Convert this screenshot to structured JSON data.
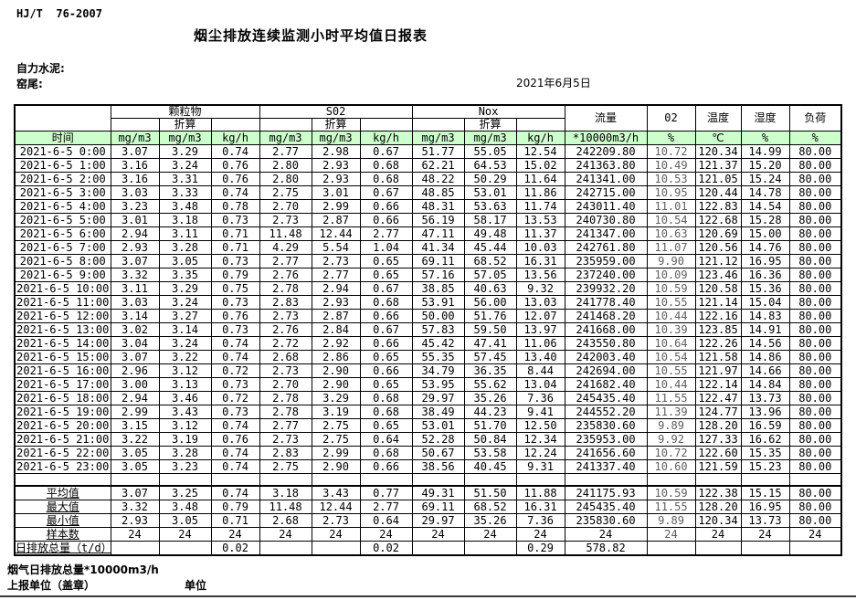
{
  "page": {
    "standard": "HJ/T  76-2007",
    "title": "烟尘排放连续监测小时平均值日报表",
    "company": "自力水泥:",
    "station": "窑尾:",
    "date": "2021年6月5日"
  },
  "colors": {
    "header_green": "#ccffcc",
    "o2_text": "#606060"
  },
  "table": {
    "header": {
      "time_label": "时间",
      "groups": [
        {
          "label": "颗粒物"
        },
        {
          "label": "S02"
        },
        {
          "label": "Nox"
        }
      ],
      "converted_label": "折算",
      "flow_label": "流量",
      "o2_label": "02",
      "temp_label": "温度",
      "humidity_label": "湿度",
      "load_label": "负荷",
      "units": [
        "mg/m3",
        "mg/m3",
        "kg/h",
        "mg/m3",
        "mg/m3",
        "kg/h",
        "mg/m3",
        "mg/m3",
        "kg/h",
        "*10000m3/h",
        "%",
        "℃",
        "%",
        "%"
      ]
    },
    "rows": [
      {
        "time": "2021-6-5 0:00",
        "values": [
          "3.07",
          "3.29",
          "0.74",
          "2.77",
          "2.98",
          "0.67",
          "51.77",
          "55.05",
          "12.54",
          "242209.80",
          "10.72",
          "120.34",
          "14.99",
          "80.00"
        ]
      },
      {
        "time": "2021-6-5 1:00",
        "values": [
          "3.16",
          "3.24",
          "0.76",
          "2.80",
          "2.93",
          "0.68",
          "62.21",
          "64.53",
          "15.02",
          "241363.80",
          "10.49",
          "121.37",
          "15.20",
          "80.00"
        ]
      },
      {
        "time": "2021-6-5 2:00",
        "values": [
          "3.16",
          "3.31",
          "0.76",
          "2.80",
          "2.93",
          "0.68",
          "48.22",
          "50.29",
          "11.64",
          "241341.00",
          "10.53",
          "121.05",
          "15.24",
          "80.00"
        ]
      },
      {
        "time": "2021-6-5 3:00",
        "values": [
          "3.03",
          "3.33",
          "0.74",
          "2.75",
          "3.01",
          "0.67",
          "48.85",
          "53.01",
          "11.86",
          "242715.00",
          "10.95",
          "120.44",
          "14.78",
          "80.00"
        ]
      },
      {
        "time": "2021-6-5 4:00",
        "values": [
          "3.23",
          "3.48",
          "0.78",
          "2.70",
          "2.99",
          "0.66",
          "48.31",
          "53.63",
          "11.74",
          "243011.40",
          "11.01",
          "122.83",
          "14.54",
          "80.00"
        ]
      },
      {
        "time": "2021-6-5 5:00",
        "values": [
          "3.01",
          "3.18",
          "0.73",
          "2.73",
          "2.87",
          "0.66",
          "56.19",
          "58.17",
          "13.53",
          "240730.80",
          "10.54",
          "122.68",
          "15.28",
          "80.00"
        ]
      },
      {
        "time": "2021-6-5 6:00",
        "values": [
          "2.94",
          "3.11",
          "0.71",
          "11.48",
          "12.44",
          "2.77",
          "47.11",
          "49.48",
          "11.37",
          "241347.00",
          "10.63",
          "120.69",
          "15.00",
          "80.00"
        ]
      },
      {
        "time": "2021-6-5 7:00",
        "values": [
          "2.93",
          "3.28",
          "0.71",
          "4.29",
          "5.54",
          "1.04",
          "41.34",
          "45.44",
          "10.03",
          "242761.80",
          "11.07",
          "120.56",
          "14.76",
          "80.00"
        ]
      },
      {
        "time": "2021-6-5 8:00",
        "values": [
          "3.07",
          "3.05",
          "0.73",
          "2.77",
          "2.73",
          "0.65",
          "69.11",
          "68.52",
          "16.31",
          "235959.00",
          "9.90",
          "121.12",
          "16.95",
          "80.00"
        ]
      },
      {
        "time": "2021-6-5 9:00",
        "values": [
          "3.32",
          "3.35",
          "0.79",
          "2.76",
          "2.77",
          "0.65",
          "57.16",
          "57.05",
          "13.56",
          "237240.00",
          "10.09",
          "123.46",
          "16.36",
          "80.00"
        ]
      },
      {
        "time": "2021-6-5 10:00",
        "values": [
          "3.11",
          "3.29",
          "0.75",
          "2.78",
          "2.94",
          "0.67",
          "38.85",
          "40.63",
          "9.32",
          "239932.20",
          "10.59",
          "120.58",
          "15.36",
          "80.00"
        ]
      },
      {
        "time": "2021-6-5 11:00",
        "values": [
          "3.03",
          "3.24",
          "0.73",
          "2.83",
          "2.93",
          "0.68",
          "53.91",
          "56.00",
          "13.03",
          "241778.40",
          "10.55",
          "121.14",
          "15.04",
          "80.00"
        ]
      },
      {
        "time": "2021-6-5 12:00",
        "values": [
          "3.14",
          "3.27",
          "0.76",
          "2.73",
          "2.87",
          "0.66",
          "50.00",
          "51.76",
          "12.07",
          "241468.20",
          "10.44",
          "122.16",
          "14.83",
          "80.00"
        ]
      },
      {
        "time": "2021-6-5 13:00",
        "values": [
          "3.02",
          "3.14",
          "0.73",
          "2.76",
          "2.84",
          "0.67",
          "57.83",
          "59.50",
          "13.97",
          "241668.00",
          "10.39",
          "123.85",
          "14.91",
          "80.00"
        ]
      },
      {
        "time": "2021-6-5 14:00",
        "values": [
          "3.04",
          "3.24",
          "0.74",
          "2.72",
          "2.92",
          "0.66",
          "45.42",
          "47.41",
          "11.06",
          "243550.80",
          "10.64",
          "122.26",
          "14.56",
          "80.00"
        ]
      },
      {
        "time": "2021-6-5 15:00",
        "values": [
          "3.07",
          "3.22",
          "0.74",
          "2.68",
          "2.86",
          "0.65",
          "55.35",
          "57.45",
          "13.40",
          "242003.40",
          "10.54",
          "121.58",
          "14.86",
          "80.00"
        ]
      },
      {
        "time": "2021-6-5 16:00",
        "values": [
          "2.96",
          "3.12",
          "0.72",
          "2.73",
          "2.90",
          "0.66",
          "34.79",
          "36.35",
          "8.44",
          "242694.00",
          "10.55",
          "121.97",
          "14.66",
          "80.00"
        ]
      },
      {
        "time": "2021-6-5 17:00",
        "values": [
          "3.00",
          "3.13",
          "0.73",
          "2.70",
          "2.90",
          "0.65",
          "53.95",
          "55.62",
          "13.04",
          "241682.40",
          "10.44",
          "122.14",
          "14.84",
          "80.00"
        ]
      },
      {
        "time": "2021-6-5 18:00",
        "values": [
          "2.94",
          "3.46",
          "0.72",
          "2.78",
          "3.29",
          "0.68",
          "29.97",
          "35.26",
          "7.36",
          "245435.40",
          "11.55",
          "122.47",
          "13.73",
          "80.00"
        ]
      },
      {
        "time": "2021-6-5 19:00",
        "values": [
          "2.99",
          "3.43",
          "0.73",
          "2.78",
          "3.19",
          "0.68",
          "38.49",
          "44.23",
          "9.41",
          "244552.20",
          "11.39",
          "124.77",
          "13.96",
          "80.00"
        ]
      },
      {
        "time": "2021-6-5 20:00",
        "values": [
          "3.15",
          "3.12",
          "0.74",
          "2.77",
          "2.75",
          "0.65",
          "53.01",
          "51.70",
          "12.50",
          "235830.60",
          "9.89",
          "128.20",
          "16.59",
          "80.00"
        ]
      },
      {
        "time": "2021-6-5 21:00",
        "values": [
          "3.22",
          "3.19",
          "0.76",
          "2.73",
          "2.75",
          "0.64",
          "52.28",
          "50.84",
          "12.34",
          "235953.00",
          "9.92",
          "127.33",
          "16.62",
          "80.00"
        ]
      },
      {
        "time": "2021-6-5 22:00",
        "values": [
          "3.05",
          "3.28",
          "0.74",
          "2.83",
          "2.99",
          "0.68",
          "50.67",
          "53.58",
          "12.24",
          "241656.60",
          "10.72",
          "122.60",
          "15.35",
          "80.00"
        ]
      },
      {
        "time": "2021-6-5 23:00",
        "values": [
          "3.05",
          "3.23",
          "0.74",
          "2.75",
          "2.90",
          "0.66",
          "38.56",
          "40.45",
          "9.31",
          "241337.40",
          "10.60",
          "121.59",
          "15.23",
          "80.00"
        ]
      }
    ],
    "summary": [
      {
        "label": "平均值",
        "values": [
          "3.07",
          "3.25",
          "0.74",
          "3.18",
          "3.43",
          "0.77",
          "49.31",
          "51.50",
          "11.88",
          "241175.93",
          "10.59",
          "122.38",
          "15.15",
          "80.00"
        ]
      },
      {
        "label": "最大值",
        "values": [
          "3.32",
          "3.48",
          "0.79",
          "11.48",
          "12.44",
          "2.77",
          "69.11",
          "68.52",
          "16.31",
          "245435.40",
          "11.55",
          "128.20",
          "16.95",
          "80.00"
        ]
      },
      {
        "label": "最小值",
        "values": [
          "2.93",
          "3.05",
          "0.71",
          "2.68",
          "2.73",
          "0.64",
          "29.97",
          "35.26",
          "7.36",
          "235830.60",
          "9.89",
          "120.34",
          "13.73",
          "80.00"
        ]
      },
      {
        "label": "样本数",
        "values": [
          "24",
          "24",
          "24",
          "24",
          "24",
          "24",
          "24",
          "24",
          "24",
          "24",
          "24",
          "24",
          "24",
          "24"
        ]
      }
    ],
    "total_row": {
      "label": "日排放总量（t/d）",
      "values": [
        "",
        "",
        "0.02",
        "",
        "",
        "0.02",
        "",
        "",
        "0.29",
        "578.82",
        "",
        "",
        "",
        ""
      ]
    }
  },
  "footer": {
    "flue_total": "烟气日排放总量*10000m3/h",
    "report_unit": "上报单位（盖章）",
    "unit": "单位"
  }
}
